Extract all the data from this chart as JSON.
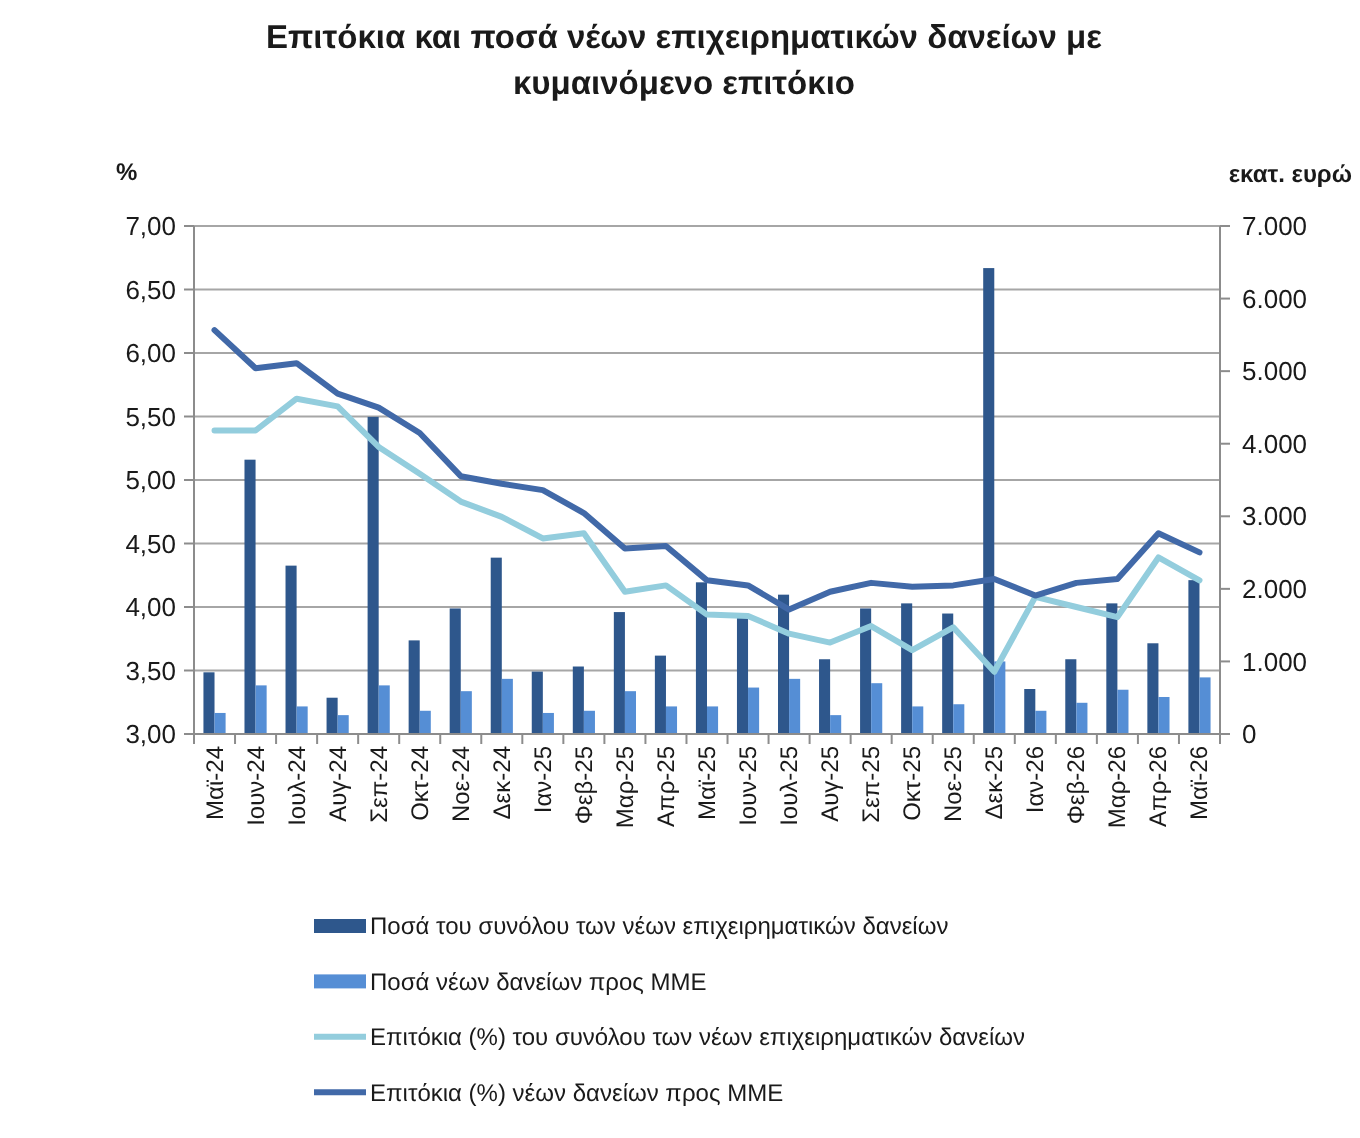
{
  "chart_data": {
    "type": "bar",
    "title": "Επιτόκια και ποσά νέων επιχειρηματικών δανείων με κυμαινόμενο επιτόκιο",
    "ylabel": "%",
    "y2label": "εκατ. ευρώ",
    "categories": [
      "Μαϊ-24",
      "Ιουν-24",
      "Ιουλ-24",
      "Αυγ-24",
      "Σεπ-24",
      "Οκτ-24",
      "Νοε-24",
      "Δεκ-24",
      "Ιαν-25",
      "Φεβ-25",
      "Μαρ-25",
      "Απρ-25",
      "Μαϊ-25",
      "Ιουν-25",
      "Ιουλ-25",
      "Αυγ-25",
      "Σεπ-25",
      "Οκτ-25",
      "Νοε-25",
      "Δεκ-25",
      "Ιαν-26",
      "Φεβ-26",
      "Μαρ-26",
      "Απρ-26",
      "Μαϊ-26"
    ],
    "series": [
      {
        "name": "Ποσά του συνόλου των νέων επιχειρηματικών δανείων",
        "axis": "y2",
        "color": "#2e578c",
        "values": [
          850,
          3780,
          2320,
          500,
          4370,
          1290,
          1730,
          2430,
          860,
          930,
          1680,
          1080,
          2090,
          1610,
          1920,
          1030,
          1730,
          1800,
          1660,
          6420,
          620,
          1030,
          1800,
          1250,
          2120
        ]
      },
      {
        "name": "Ποσά νέων δανείων προς ΜΜΕ",
        "axis": "y2",
        "color": "#558ed5",
        "values": [
          290,
          670,
          380,
          260,
          670,
          320,
          590,
          760,
          290,
          320,
          590,
          380,
          380,
          640,
          760,
          260,
          700,
          380,
          410,
          1000,
          320,
          430,
          610,
          510,
          780
        ]
      },
      {
        "name": "Επιτόκια (%) του συνόλου των νέων επιχειρηματικών δανείων",
        "type": "line",
        "axis": "y",
        "color": "#93cddd",
        "values": [
          5.39,
          5.39,
          5.64,
          5.58,
          5.26,
          5.05,
          4.83,
          4.71,
          4.54,
          4.58,
          4.12,
          4.17,
          3.94,
          3.93,
          3.79,
          3.72,
          3.85,
          3.66,
          3.84,
          3.49,
          4.08,
          4.0,
          3.92,
          4.39,
          4.21
        ]
      },
      {
        "name": "Επιτόκια (%) νέων δανείων προς ΜΜΕ",
        "type": "line",
        "axis": "y",
        "color": "#4169a8",
        "values": [
          6.18,
          5.88,
          5.92,
          5.68,
          5.57,
          5.37,
          5.03,
          4.97,
          4.92,
          4.74,
          4.46,
          4.48,
          4.21,
          4.17,
          3.98,
          4.12,
          4.19,
          4.16,
          4.17,
          4.22,
          4.09,
          4.19,
          4.22,
          4.58,
          4.43
        ]
      }
    ],
    "ylim": [
      3,
      7
    ],
    "yticks": [
      {
        "value": 3,
        "label": "3,00"
      },
      {
        "value": 3.5,
        "label": "3,50"
      },
      {
        "value": 4,
        "label": "4,00"
      },
      {
        "value": 4.5,
        "label": "4,50"
      },
      {
        "value": 5,
        "label": "5,00"
      },
      {
        "value": 5.5,
        "label": "5,50"
      },
      {
        "value": 6,
        "label": "6,00"
      },
      {
        "value": 6.5,
        "label": "6,50"
      },
      {
        "value": 7,
        "label": "7,00"
      }
    ],
    "y2lim": [
      0,
      7000
    ],
    "y2ticks": [
      0,
      {
        "value": 1000,
        "label": "1.000"
      },
      {
        "value": 2000,
        "label": "2.000"
      },
      {
        "value": 3000,
        "label": "3.000"
      },
      {
        "value": 4000,
        "label": "4.000"
      },
      {
        "value": 5000,
        "label": "5.000"
      },
      {
        "value": 6000,
        "label": "6.000"
      },
      {
        "value": 7000,
        "label": "7.000"
      }
    ],
    "grid": "y",
    "legend": "bottom"
  }
}
